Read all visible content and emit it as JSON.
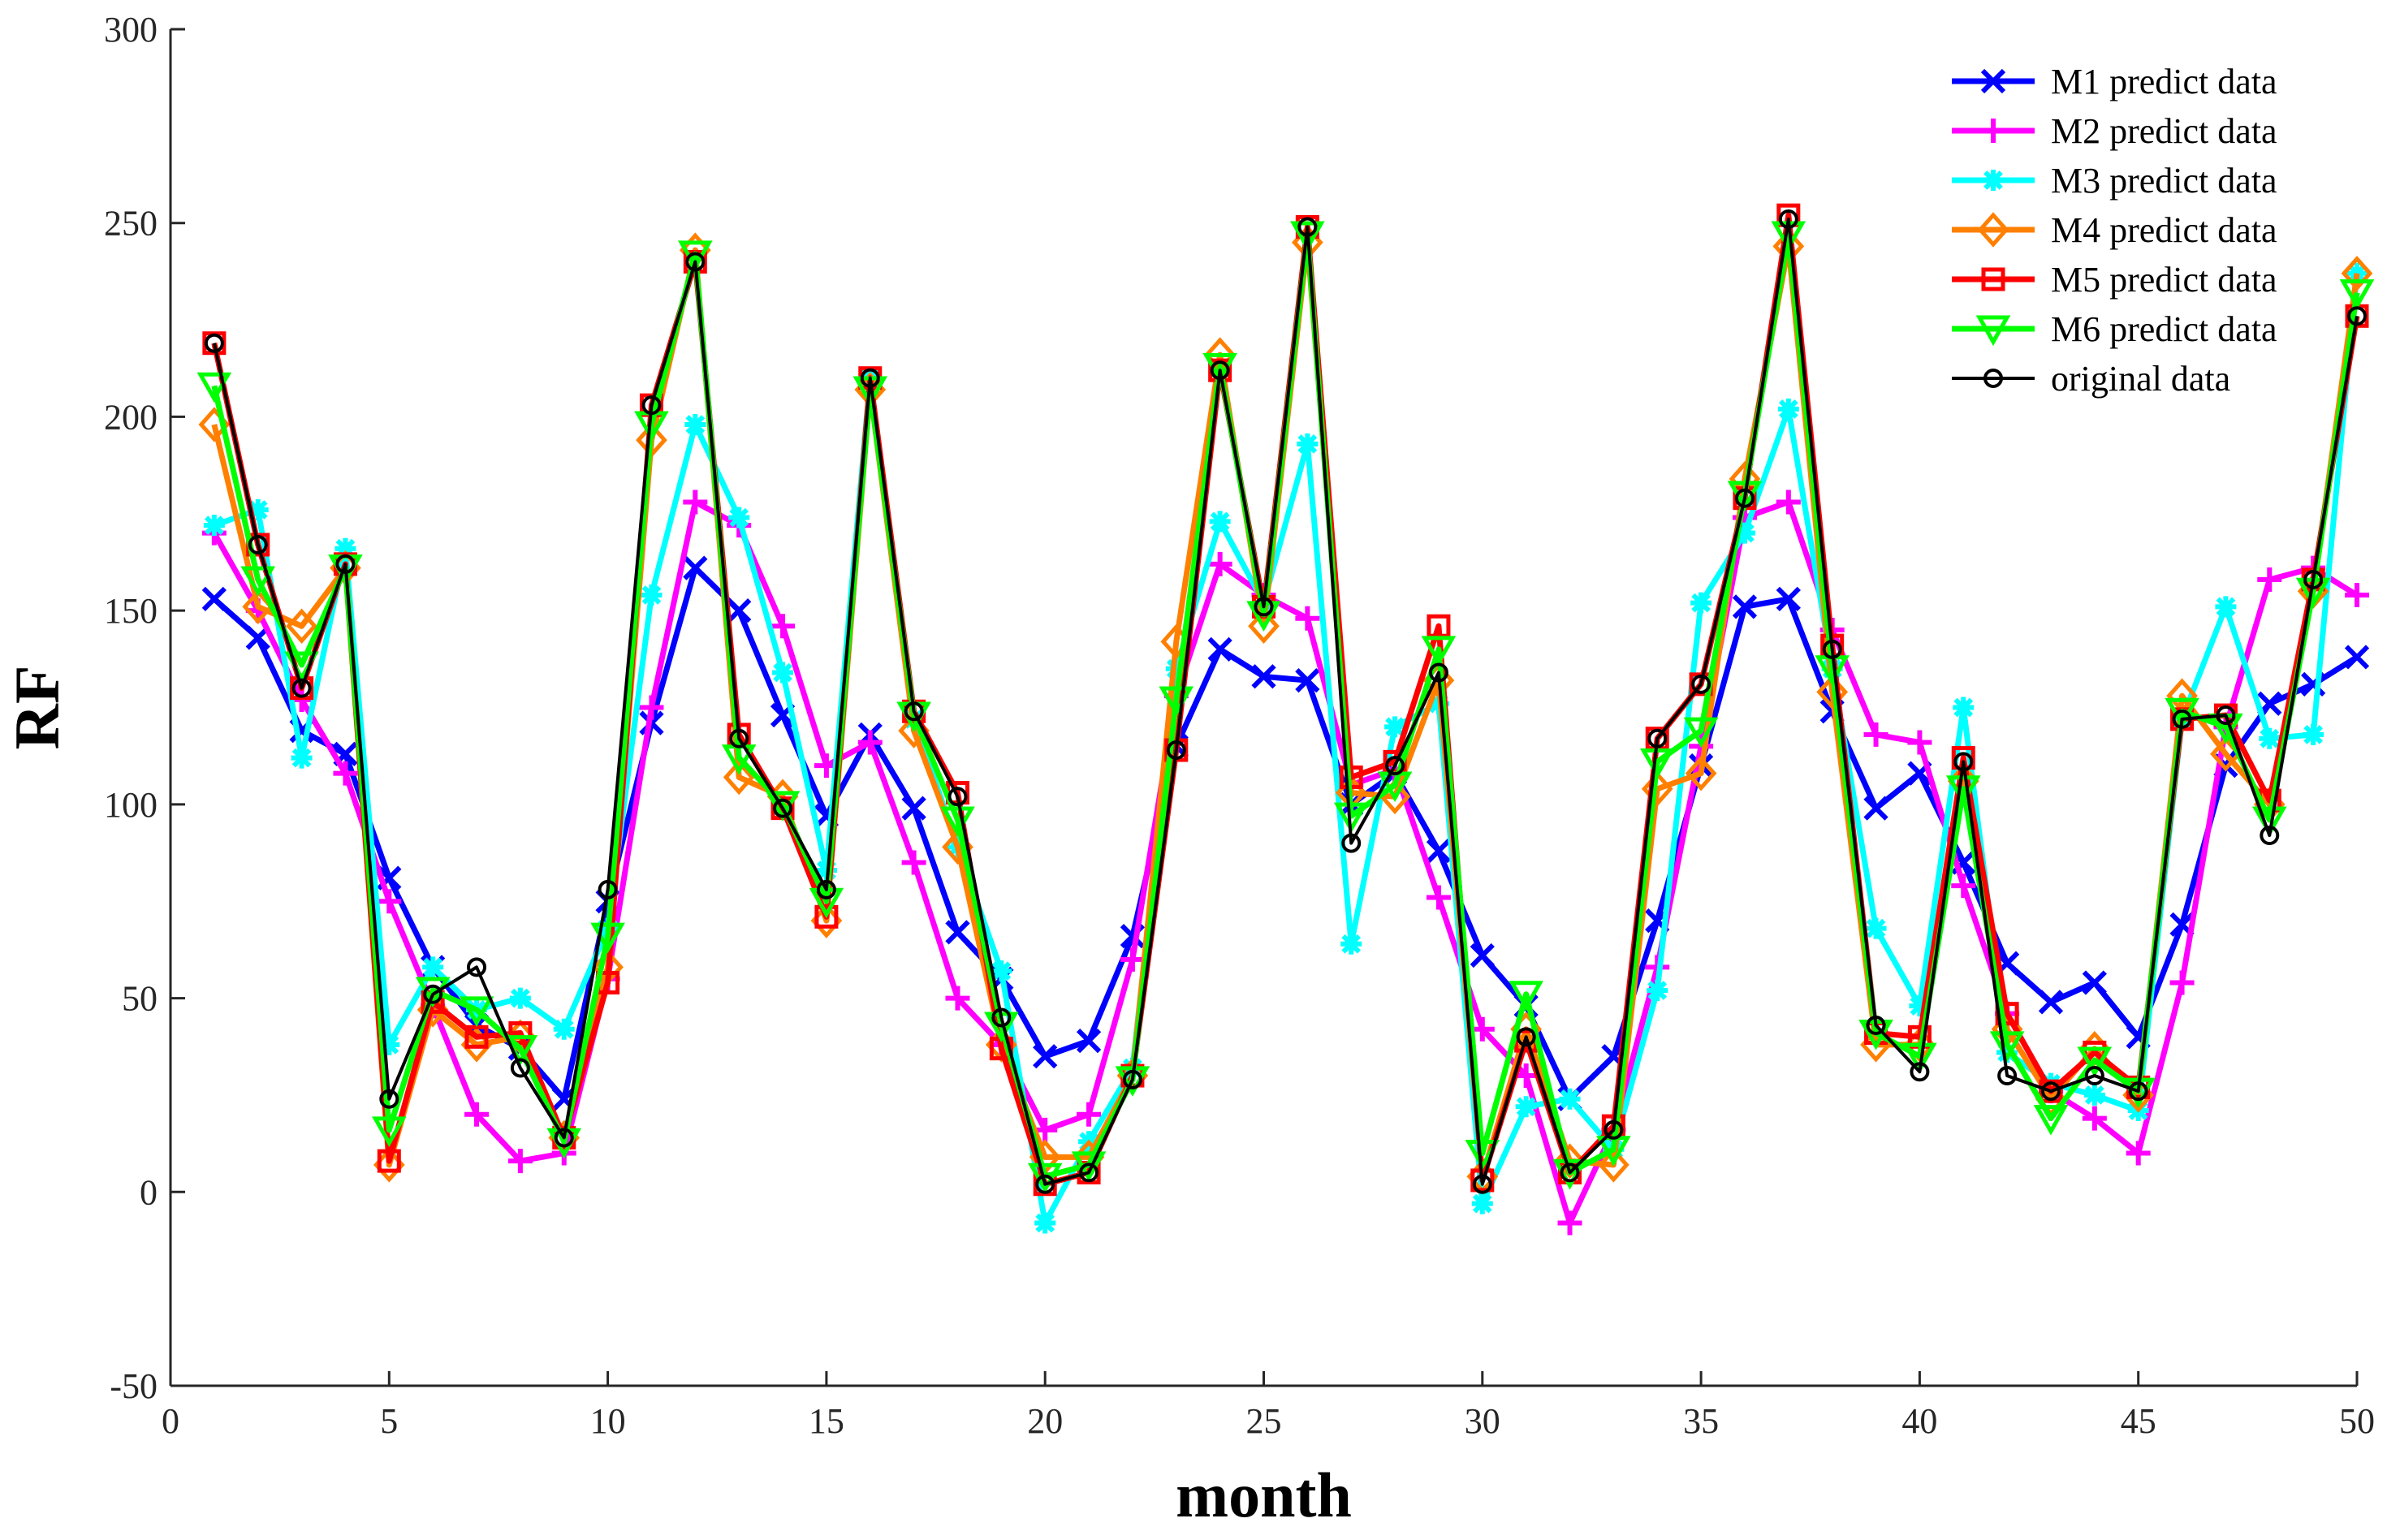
{
  "chart_data": {
    "type": "line",
    "title": "",
    "xlabel": "month",
    "ylabel": "RF",
    "xlim": [
      0,
      50
    ],
    "ylim": [
      -50,
      300
    ],
    "xticks": [
      0,
      5,
      10,
      15,
      20,
      25,
      30,
      35,
      40,
      45,
      50
    ],
    "yticks": [
      -50,
      0,
      50,
      100,
      150,
      200,
      250,
      300
    ],
    "legend_position": "top-right",
    "x": [
      1,
      2,
      3,
      4,
      5,
      6,
      7,
      8,
      9,
      10,
      11,
      12,
      13,
      14,
      15,
      16,
      17,
      18,
      19,
      20,
      21,
      22,
      23,
      24,
      25,
      26,
      27,
      28,
      29,
      30,
      31,
      32,
      33,
      34,
      35,
      36,
      37,
      38,
      39,
      40,
      41,
      42,
      43,
      44,
      45,
      46,
      47,
      48,
      49,
      50
    ],
    "series": [
      {
        "name": "M1 predict data",
        "color": "#0000ff",
        "marker": "x",
        "values": [
          153,
          143,
          119,
          113,
          81,
          58,
          43,
          37,
          24,
          75,
          121,
          161,
          150,
          123,
          97,
          118,
          99,
          67,
          55,
          35,
          39,
          66,
          115,
          140,
          133,
          132,
          100,
          108,
          88,
          61,
          48,
          24,
          35,
          70,
          110,
          151,
          153,
          124,
          99,
          108,
          85,
          59,
          49,
          54,
          40,
          69,
          110,
          126,
          131,
          138
        ]
      },
      {
        "name": "M2 predict data",
        "color": "#ff00ff",
        "marker": "plus",
        "values": [
          170,
          150,
          127,
          108,
          75,
          48,
          20,
          8,
          10,
          55,
          125,
          178,
          172,
          146,
          110,
          116,
          85,
          50,
          38,
          16,
          20,
          60,
          128,
          162,
          154,
          148,
          105,
          109,
          76,
          42,
          30,
          -8,
          16,
          58,
          115,
          174,
          178,
          145,
          118,
          116,
          79,
          46,
          26,
          19,
          10,
          54,
          120,
          158,
          161,
          154
        ]
      },
      {
        "name": "M3 predict data",
        "color": "#00ffff",
        "marker": "star",
        "values": [
          172,
          176,
          112,
          166,
          38,
          58,
          47,
          50,
          42,
          68,
          154,
          198,
          174,
          134,
          83,
          210,
          122,
          89,
          57,
          -8,
          13,
          32,
          135,
          173,
          152,
          193,
          64,
          120,
          126,
          -3,
          22,
          24,
          11,
          52,
          152,
          170,
          202,
          135,
          68,
          48,
          125,
          36,
          28,
          25,
          21,
          122,
          151,
          117,
          118,
          237
        ]
      },
      {
        "name": "M4 predict data",
        "color": "#ff8000",
        "marker": "diamond",
        "values": [
          198,
          151,
          146,
          161,
          7,
          47,
          38,
          40,
          14,
          58,
          194,
          243,
          107,
          102,
          70,
          207,
          119,
          89,
          38,
          9,
          9,
          30,
          142,
          216,
          146,
          245,
          103,
          102,
          132,
          4,
          42,
          8,
          7,
          104,
          108,
          184,
          244,
          129,
          38,
          38,
          106,
          42,
          24,
          37,
          25,
          128,
          113,
          100,
          155,
          237
        ]
      },
      {
        "name": "M5 predict data",
        "color": "#ff0000",
        "marker": "square",
        "values": [
          219,
          167,
          130,
          162,
          8,
          49,
          40,
          41,
          14,
          54,
          203,
          240,
          118,
          99,
          71,
          210,
          124,
          103,
          37,
          2,
          5,
          30,
          114,
          212,
          151,
          249,
          107,
          111,
          146,
          3,
          39,
          5,
          17,
          117,
          131,
          179,
          252,
          141,
          41,
          40,
          112,
          46,
          26,
          36,
          27,
          122,
          123,
          101,
          158,
          226
        ]
      },
      {
        "name": "M6 predict data",
        "color": "#00ff00",
        "marker": "triangle-down",
        "values": [
          208,
          158,
          136,
          161,
          16,
          52,
          47,
          37,
          13,
          66,
          198,
          242,
          112,
          100,
          75,
          207,
          123,
          96,
          43,
          4,
          7,
          29,
          127,
          213,
          149,
          247,
          97,
          105,
          140,
          10,
          51,
          5,
          11,
          111,
          119,
          180,
          247,
          135,
          41,
          35,
          104,
          38,
          19,
          34,
          26,
          124,
          120,
          96,
          155,
          232
        ]
      },
      {
        "name": "original data",
        "color": "#000000",
        "marker": "circle",
        "values": [
          219,
          167,
          130,
          162,
          24,
          51,
          58,
          32,
          14,
          78,
          203,
          240,
          117,
          99,
          78,
          210,
          124,
          102,
          45,
          2,
          5,
          29,
          114,
          212,
          151,
          249,
          90,
          110,
          134,
          2,
          40,
          5,
          16,
          117,
          131,
          179,
          251,
          140,
          43,
          31,
          111,
          30,
          26,
          30,
          26,
          122,
          123,
          92,
          158,
          226
        ]
      }
    ]
  }
}
